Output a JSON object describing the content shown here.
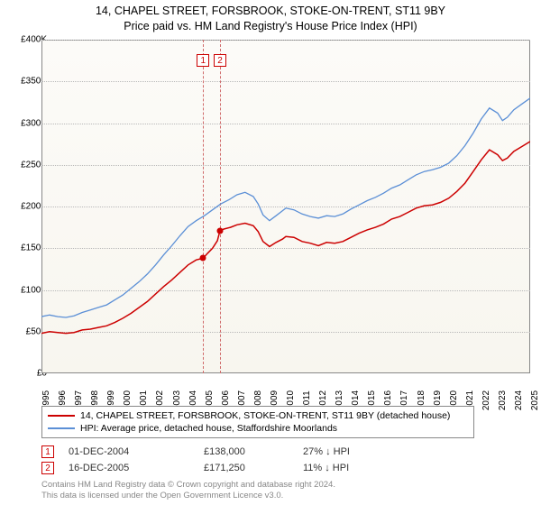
{
  "title_line1": "14, CHAPEL STREET, FORSBROOK, STOKE-ON-TRENT, ST11 9BY",
  "title_line2": "Price paid vs. HM Land Registry's House Price Index (HPI)",
  "chart": {
    "type": "line",
    "background_gradient_top": "#fcfbf8",
    "background_gradient_bottom": "#f8f6ef",
    "grid_color": "#b8b8b8",
    "border_color": "#888888",
    "y_axis": {
      "min": 0,
      "max": 400000,
      "step": 50000,
      "labels": [
        "£0",
        "£50K",
        "£100K",
        "£150K",
        "£200K",
        "£250K",
        "£300K",
        "£350K",
        "£400K"
      ],
      "font_size": 10
    },
    "x_axis": {
      "min": 1995,
      "max": 2025,
      "labels": [
        "1995",
        "1996",
        "1997",
        "1998",
        "1999",
        "2000",
        "2001",
        "2002",
        "2003",
        "2004",
        "2005",
        "2006",
        "2007",
        "2008",
        "2009",
        "2010",
        "2011",
        "2012",
        "2013",
        "2014",
        "2015",
        "2016",
        "2017",
        "2018",
        "2019",
        "2020",
        "2021",
        "2022",
        "2023",
        "2024",
        "2025"
      ],
      "font_size": 10
    },
    "series": [
      {
        "name": "property",
        "label": "14, CHAPEL STREET, FORSBROOK, STOKE-ON-TRENT, ST11 9BY (detached house)",
        "color": "#cc0000",
        "line_width": 1.5,
        "points": [
          [
            1995,
            48000
          ],
          [
            1995.5,
            50000
          ],
          [
            1996,
            49000
          ],
          [
            1996.5,
            48000
          ],
          [
            1997,
            49000
          ],
          [
            1997.5,
            52000
          ],
          [
            1998,
            53000
          ],
          [
            1998.5,
            55000
          ],
          [
            1999,
            57000
          ],
          [
            1999.5,
            61000
          ],
          [
            2000,
            66000
          ],
          [
            2000.5,
            72000
          ],
          [
            2001,
            79000
          ],
          [
            2001.5,
            86000
          ],
          [
            2002,
            95000
          ],
          [
            2002.5,
            104000
          ],
          [
            2003,
            112000
          ],
          [
            2003.5,
            121000
          ],
          [
            2004,
            130000
          ],
          [
            2004.5,
            136000
          ],
          [
            2004.92,
            138000
          ],
          [
            2005.2,
            144000
          ],
          [
            2005.5,
            150000
          ],
          [
            2005.8,
            159000
          ],
          [
            2005.96,
            171250
          ],
          [
            2006.2,
            173000
          ],
          [
            2006.6,
            175000
          ],
          [
            2007,
            178000
          ],
          [
            2007.5,
            180000
          ],
          [
            2008,
            177000
          ],
          [
            2008.3,
            170000
          ],
          [
            2008.6,
            158000
          ],
          [
            2009,
            152000
          ],
          [
            2009.4,
            157000
          ],
          [
            2009.8,
            161000
          ],
          [
            2010,
            164000
          ],
          [
            2010.5,
            163000
          ],
          [
            2011,
            158000
          ],
          [
            2011.5,
            156000
          ],
          [
            2012,
            153000
          ],
          [
            2012.5,
            157000
          ],
          [
            2013,
            156000
          ],
          [
            2013.5,
            158000
          ],
          [
            2014,
            163000
          ],
          [
            2014.5,
            168000
          ],
          [
            2015,
            172000
          ],
          [
            2015.5,
            175000
          ],
          [
            2016,
            179000
          ],
          [
            2016.5,
            185000
          ],
          [
            2017,
            188000
          ],
          [
            2017.5,
            193000
          ],
          [
            2018,
            198000
          ],
          [
            2018.5,
            201000
          ],
          [
            2019,
            202000
          ],
          [
            2019.5,
            205000
          ],
          [
            2020,
            210000
          ],
          [
            2020.5,
            218000
          ],
          [
            2021,
            228000
          ],
          [
            2021.5,
            242000
          ],
          [
            2022,
            256000
          ],
          [
            2022.5,
            268000
          ],
          [
            2023,
            262000
          ],
          [
            2023.3,
            255000
          ],
          [
            2023.6,
            258000
          ],
          [
            2024,
            266000
          ],
          [
            2024.5,
            272000
          ],
          [
            2025,
            278000
          ]
        ]
      },
      {
        "name": "hpi",
        "label": "HPI: Average price, detached house, Staffordshire Moorlands",
        "color": "#5b8fd6",
        "line_width": 1.3,
        "points": [
          [
            1995,
            68000
          ],
          [
            1995.5,
            70000
          ],
          [
            1996,
            68000
          ],
          [
            1996.5,
            67000
          ],
          [
            1997,
            69000
          ],
          [
            1997.5,
            73000
          ],
          [
            1998,
            76000
          ],
          [
            1998.5,
            79000
          ],
          [
            1999,
            82000
          ],
          [
            1999.5,
            88000
          ],
          [
            2000,
            94000
          ],
          [
            2000.5,
            102000
          ],
          [
            2001,
            110000
          ],
          [
            2001.5,
            119000
          ],
          [
            2002,
            130000
          ],
          [
            2002.5,
            142000
          ],
          [
            2003,
            153000
          ],
          [
            2003.5,
            165000
          ],
          [
            2004,
            176000
          ],
          [
            2004.5,
            183000
          ],
          [
            2005,
            189000
          ],
          [
            2005.5,
            196000
          ],
          [
            2006,
            203000
          ],
          [
            2006.5,
            208000
          ],
          [
            2007,
            214000
          ],
          [
            2007.5,
            217000
          ],
          [
            2008,
            212000
          ],
          [
            2008.3,
            203000
          ],
          [
            2008.6,
            190000
          ],
          [
            2009,
            183000
          ],
          [
            2009.4,
            189000
          ],
          [
            2009.8,
            195000
          ],
          [
            2010,
            198000
          ],
          [
            2010.5,
            196000
          ],
          [
            2011,
            191000
          ],
          [
            2011.5,
            188000
          ],
          [
            2012,
            186000
          ],
          [
            2012.5,
            189000
          ],
          [
            2013,
            188000
          ],
          [
            2013.5,
            191000
          ],
          [
            2014,
            197000
          ],
          [
            2014.5,
            202000
          ],
          [
            2015,
            207000
          ],
          [
            2015.5,
            211000
          ],
          [
            2016,
            216000
          ],
          [
            2016.5,
            222000
          ],
          [
            2017,
            226000
          ],
          [
            2017.5,
            232000
          ],
          [
            2018,
            238000
          ],
          [
            2018.5,
            242000
          ],
          [
            2019,
            244000
          ],
          [
            2019.5,
            247000
          ],
          [
            2020,
            252000
          ],
          [
            2020.5,
            261000
          ],
          [
            2021,
            273000
          ],
          [
            2021.5,
            288000
          ],
          [
            2022,
            305000
          ],
          [
            2022.5,
            318000
          ],
          [
            2023,
            312000
          ],
          [
            2023.3,
            303000
          ],
          [
            2023.6,
            307000
          ],
          [
            2024,
            316000
          ],
          [
            2024.5,
            323000
          ],
          [
            2025,
            330000
          ]
        ]
      }
    ],
    "sale_markers": [
      {
        "n": "1",
        "x": 2004.92,
        "y": 138000
      },
      {
        "n": "2",
        "x": 2005.96,
        "y": 171250
      }
    ]
  },
  "legend": {
    "rows": [
      {
        "color": "#cc0000",
        "label": "14, CHAPEL STREET, FORSBROOK, STOKE-ON-TRENT, ST11 9BY (detached house)"
      },
      {
        "color": "#5b8fd6",
        "label": "HPI: Average price, detached house, Staffordshire Moorlands"
      }
    ]
  },
  "sales": [
    {
      "n": "1",
      "date": "01-DEC-2004",
      "price": "£138,000",
      "pct": "27% ↓ HPI"
    },
    {
      "n": "2",
      "date": "16-DEC-2005",
      "price": "£171,250",
      "pct": "11% ↓ HPI"
    }
  ],
  "footer_line1": "Contains HM Land Registry data © Crown copyright and database right 2024.",
  "footer_line2": "This data is licensed under the Open Government Licence v3.0."
}
